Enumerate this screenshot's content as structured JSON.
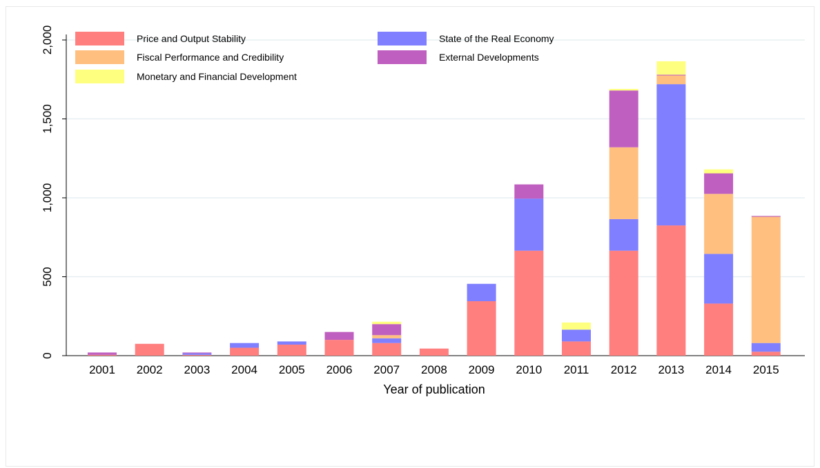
{
  "chart_data": {
    "type": "bar",
    "stacked": true,
    "xlabel": "Year of publication",
    "ylabel": "",
    "ylim": [
      0,
      2000
    ],
    "yticks": [
      0,
      500,
      1000,
      1500,
      2000
    ],
    "ytick_labels": [
      "0",
      "500",
      "1,000",
      "1,500",
      "2,000"
    ],
    "grid": "horizontal",
    "legend_position": "top",
    "categories": [
      "2001",
      "2002",
      "2003",
      "2004",
      "2005",
      "2006",
      "2007",
      "2008",
      "2009",
      "2010",
      "2011",
      "2012",
      "2013",
      "2014",
      "2015"
    ],
    "series": [
      {
        "name": "Price and Output Stability",
        "color": "#ff7f7f",
        "values": [
          5,
          75,
          5,
          50,
          70,
          100,
          80,
          45,
          345,
          665,
          90,
          665,
          825,
          330,
          25
        ]
      },
      {
        "name": "State of the Real Economy",
        "color": "#7f7fff",
        "values": [
          0,
          0,
          10,
          30,
          20,
          0,
          30,
          0,
          110,
          330,
          75,
          200,
          895,
          315,
          55
        ]
      },
      {
        "name": "Fiscal Performance and Credibility",
        "color": "#ffbf7f",
        "values": [
          0,
          0,
          0,
          0,
          0,
          0,
          20,
          0,
          0,
          0,
          0,
          455,
          55,
          380,
          800
        ]
      },
      {
        "name": "External Developments",
        "color": "#bf5fbf",
        "values": [
          15,
          0,
          5,
          0,
          0,
          50,
          70,
          0,
          0,
          90,
          0,
          360,
          5,
          130,
          5
        ]
      },
      {
        "name": "Monetary and Financial Development",
        "color": "#ffff7f",
        "values": [
          0,
          0,
          0,
          0,
          0,
          0,
          15,
          0,
          0,
          0,
          45,
          10,
          85,
          25,
          0
        ]
      }
    ],
    "legend_order": [
      "Price and Output Stability",
      "State of the Real Economy",
      "Fiscal Performance and Credibility",
      "External Developments",
      "Monetary and Financial Development"
    ]
  }
}
